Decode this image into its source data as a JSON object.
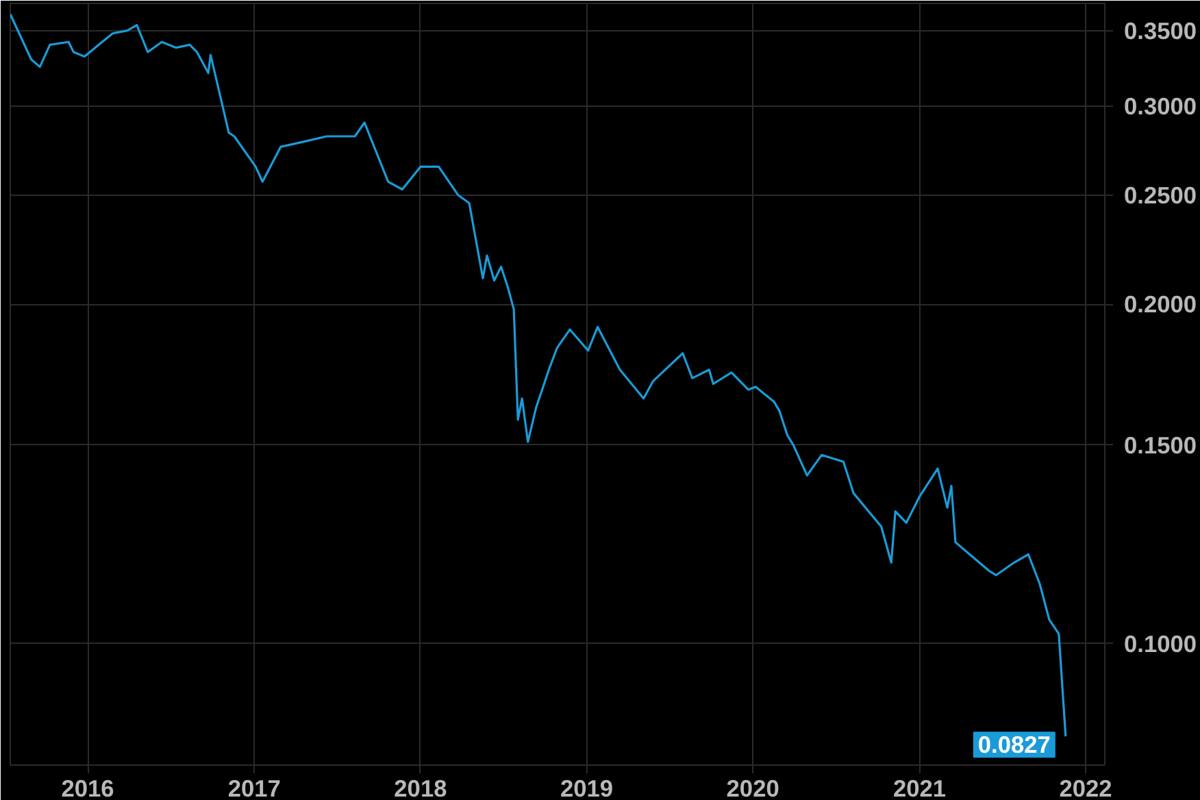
{
  "chart_data": {
    "type": "line",
    "log": "y",
    "grid": true,
    "line_style": "solid",
    "xlim": [
      "2015-07-15",
      "2022-02-12"
    ],
    "xticks": [
      {
        "value": "2016-01-01",
        "label": "2016"
      },
      {
        "value": "2017-01-01",
        "label": "2017"
      },
      {
        "value": "2018-01-01",
        "label": "2018"
      },
      {
        "value": "2019-01-01",
        "label": "2019"
      },
      {
        "value": "2020-01-01",
        "label": "2020"
      },
      {
        "value": "2021-01-01",
        "label": "2021"
      },
      {
        "value": "2022-01-01",
        "label": "2022"
      }
    ],
    "ylim": [
      0.078,
      0.37
    ],
    "yticks": [
      {
        "value": 0.1,
        "label": "0.1000"
      },
      {
        "value": 0.15,
        "label": "0.1500"
      },
      {
        "value": 0.2,
        "label": "0.2000"
      },
      {
        "value": 0.25,
        "label": "0.2500"
      },
      {
        "value": 0.3,
        "label": "0.3000"
      },
      {
        "value": 0.35,
        "label": "0.3500"
      }
    ],
    "annotations": [
      {
        "text": "0.0827",
        "x": "2021-11-18",
        "y": 0.0827
      }
    ],
    "x": [
      "2015-07-15",
      "2015-08-30",
      "2015-09-18",
      "2015-10-10",
      "2015-11-20",
      "2015-12-01",
      "2015-12-25",
      "2016-01-25",
      "2016-02-25",
      "2016-03-28",
      "2016-04-18",
      "2016-05-12",
      "2016-06-12",
      "2016-07-13",
      "2016-08-12",
      "2016-08-28",
      "2016-09-22",
      "2016-09-27",
      "2016-11-06",
      "2016-11-18",
      "2017-01-04",
      "2017-01-19",
      "2017-02-28",
      "2017-04-21",
      "2017-06-09",
      "2017-08-10",
      "2017-08-31",
      "2017-10-22",
      "2017-11-22",
      "2018-01-01",
      "2018-02-10",
      "2018-03-25",
      "2018-04-18",
      "2018-05-18",
      "2018-05-27",
      "2018-06-12",
      "2018-06-27",
      "2018-07-12",
      "2018-07-25",
      "2018-08-03",
      "2018-08-12",
      "2018-08-25",
      "2018-09-12",
      "2018-10-10",
      "2018-10-28",
      "2018-11-25",
      "2019-01-04",
      "2019-01-25",
      "2019-03-15",
      "2019-05-06",
      "2019-05-27",
      "2019-07-31",
      "2019-08-21",
      "2019-09-27",
      "2019-10-06",
      "2019-11-15",
      "2019-12-22",
      "2020-01-07",
      "2020-02-16",
      "2020-02-28",
      "2020-03-17",
      "2020-03-30",
      "2020-04-29",
      "2020-05-31",
      "2020-07-18",
      "2020-08-09",
      "2020-10-09",
      "2020-10-31",
      "2020-11-09",
      "2020-12-03",
      "2021-01-01",
      "2021-02-10",
      "2021-03-03",
      "2021-03-12",
      "2021-03-21",
      "2021-04-21",
      "2021-06-03",
      "2021-06-18",
      "2021-07-28",
      "2021-08-28",
      "2021-09-22",
      "2021-10-13",
      "2021-11-03",
      "2021-11-18"
    ],
    "series": [
      {
        "color": "#1a9bd7",
        "values": [
          0.362,
          0.33,
          0.325,
          0.34,
          0.342,
          0.335,
          0.332,
          0.34,
          0.348,
          0.35,
          0.354,
          0.335,
          0.342,
          0.338,
          0.34,
          0.335,
          0.321,
          0.333,
          0.284,
          0.282,
          0.265,
          0.257,
          0.276,
          0.279,
          0.282,
          0.282,
          0.29,
          0.257,
          0.253,
          0.265,
          0.265,
          0.25,
          0.246,
          0.211,
          0.221,
          0.21,
          0.216,
          0.207,
          0.198,
          0.158,
          0.165,
          0.151,
          0.162,
          0.175,
          0.183,
          0.19,
          0.182,
          0.191,
          0.175,
          0.165,
          0.171,
          0.181,
          0.172,
          0.175,
          0.17,
          0.174,
          0.168,
          0.169,
          0.164,
          0.161,
          0.153,
          0.15,
          0.141,
          0.147,
          0.145,
          0.136,
          0.127,
          0.118,
          0.131,
          0.128,
          0.135,
          0.143,
          0.132,
          0.138,
          0.123,
          0.12,
          0.116,
          0.115,
          0.118,
          0.12,
          0.113,
          0.105,
          0.102,
          0.0827
        ]
      }
    ]
  }
}
